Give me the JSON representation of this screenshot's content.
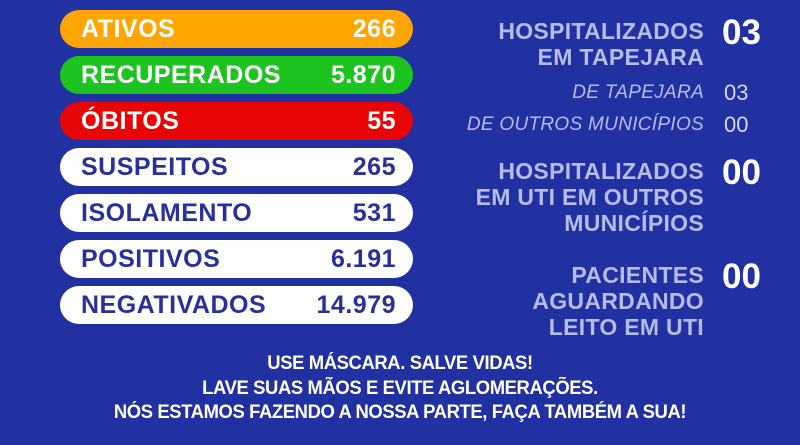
{
  "theme": {
    "background": "#2231A2",
    "pill_orange": "#FFA602",
    "pill_green": "#1DC41F",
    "pill_red": "#E80505",
    "pill_white": "#FFFFFF",
    "navy_text": "#28309C",
    "light_text": "#B6BCEA",
    "white_text": "#FFFFFF"
  },
  "stats_pills": [
    {
      "label": "ATIVOS",
      "value": "266",
      "style": "orange"
    },
    {
      "label": "RECUPERADOS",
      "value": "5.870",
      "style": "green"
    },
    {
      "label": "ÓBITOS",
      "value": "55",
      "style": "red"
    },
    {
      "label": "SUSPEITOS",
      "value": "265",
      "style": "white"
    },
    {
      "label": "ISOLAMENTO",
      "value": "531",
      "style": "white"
    },
    {
      "label": "POSITIVOS",
      "value": "6.191",
      "style": "white"
    },
    {
      "label": "NEGATIVADOS",
      "value": "14.979",
      "style": "white"
    }
  ],
  "right_panel": {
    "tapejara": {
      "line1": "HOSPITALIZADOS",
      "line2": "EM TAPEJARA",
      "value": "03"
    },
    "breakdown": [
      {
        "label": "DE TAPEJARA",
        "value": "03"
      },
      {
        "label": "DE OUTROS MUNICÍPIOS",
        "value": "00"
      }
    ],
    "uti_outros": {
      "line1": "HOSPITALIZADOS",
      "line2": "EM UTI EM OUTROS",
      "line3": "MUNICÍPIOS",
      "value": "00"
    },
    "aguardando": {
      "line1": "PACIENTES",
      "line2": "AGUARDANDO",
      "line3": "LEITO EM UTI",
      "value": "00"
    }
  },
  "footer": {
    "line1": "USE MÁSCARA. SALVE VIDAS!",
    "line2": "LAVE SUAS MÃOS E EVITE AGLOMERAÇÕES.",
    "line3": "NÓS ESTAMOS FAZENDO A NOSSA PARTE, FAÇA TAMBÉM A SUA!"
  },
  "chart_data": {
    "type": "table",
    "title": "COVID-19 bulletin - Tapejara",
    "categories": [
      "ATIVOS",
      "RECUPERADOS",
      "ÓBITOS",
      "SUSPEITOS",
      "ISOLAMENTO",
      "POSITIVOS",
      "NEGATIVADOS",
      "HOSPITALIZADOS EM TAPEJARA",
      "DE TAPEJARA",
      "DE OUTROS MUNICÍPIOS",
      "HOSPITALIZADOS EM UTI EM OUTROS MUNICÍPIOS",
      "PACIENTES AGUARDANDO LEITO EM UTI"
    ],
    "values": [
      266,
      5870,
      55,
      265,
      531,
      6191,
      14979,
      3,
      3,
      0,
      0,
      0
    ]
  }
}
